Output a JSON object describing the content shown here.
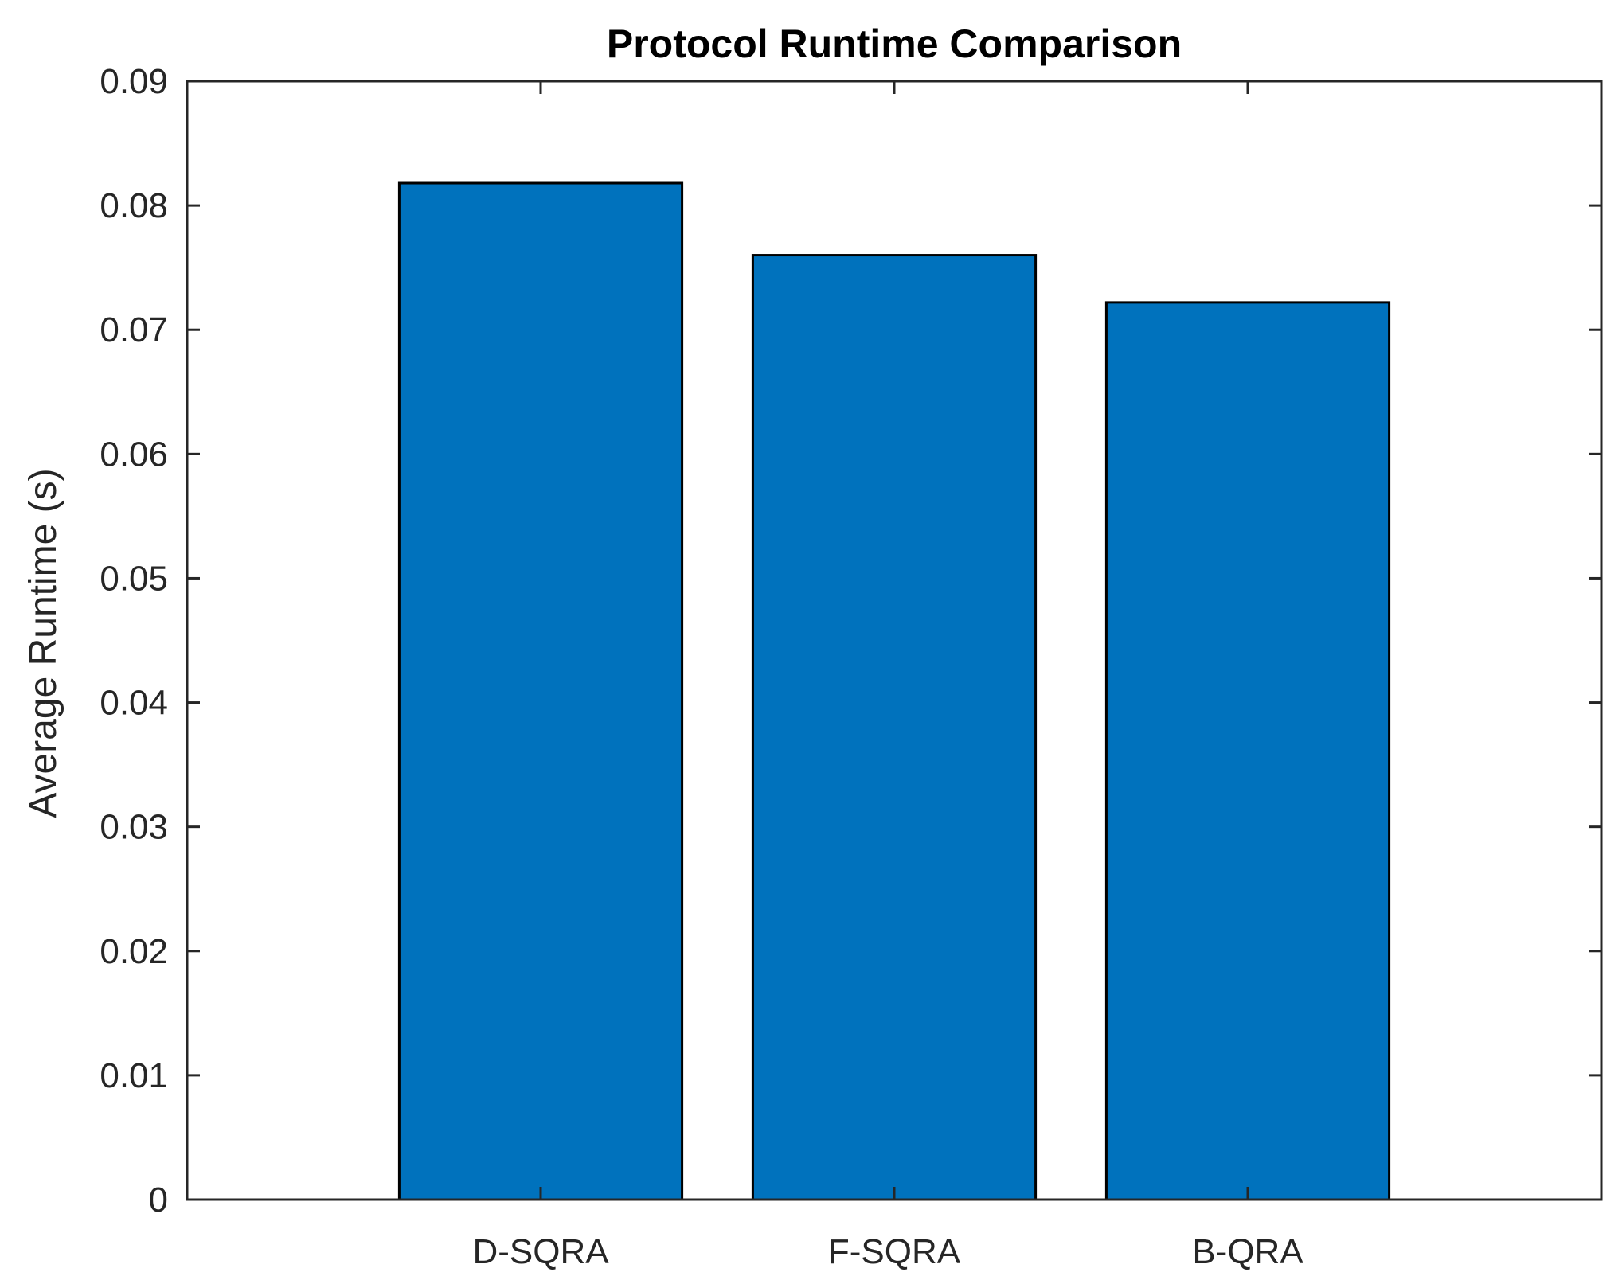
{
  "chart_data": {
    "type": "bar",
    "title": "Protocol Runtime Comparison",
    "xlabel": "",
    "ylabel": "Average Runtime (s)",
    "categories": [
      "D-SQRA",
      "F-SQRA",
      "B-QRA"
    ],
    "values": [
      0.0818,
      0.076,
      0.0722
    ],
    "ylim": [
      0,
      0.09
    ],
    "yticks": [
      "0",
      "0.01",
      "0.02",
      "0.03",
      "0.04",
      "0.05",
      "0.06",
      "0.07",
      "0.08",
      "0.09"
    ],
    "grid": false,
    "legend": "none",
    "colors": {
      "bar_fill": "#0072BD",
      "bar_edge": "#000000",
      "axis": "#262626",
      "title": "#000000"
    }
  }
}
